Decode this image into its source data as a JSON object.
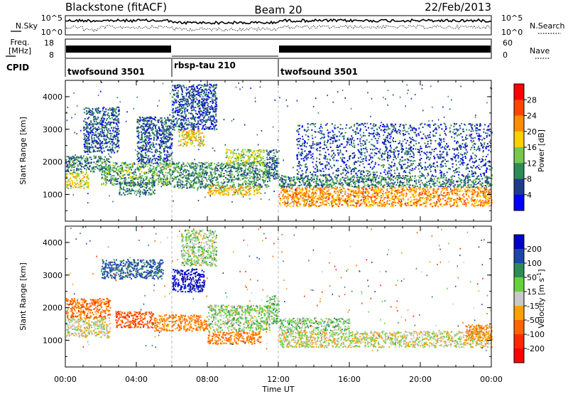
{
  "header": {
    "station": "Blackstone (fitACF)",
    "beam": "Beam 20",
    "date": "22/Feb/2013"
  },
  "strip_labels": {
    "nsky": "N.Sky",
    "nsearch": "N.Search",
    "freq_line1": "Freq.",
    "freq_line2": "[MHz]",
    "nave": "Nave",
    "cpid": "CPID",
    "noise_ticks": [
      "10^5",
      "10^0"
    ],
    "freq_ticks": [
      "18",
      "8"
    ],
    "nave_ticks": [
      "60",
      "0"
    ]
  },
  "cpid_segments": [
    {
      "label": "twofsound 3501",
      "start_hr": 0,
      "end_hr": 6.0
    },
    {
      "label": "rbsp-tau 210",
      "start_hr": 6.0,
      "end_hr": 12.0
    },
    {
      "label": "twofsound 3501",
      "start_hr": 12.0,
      "end_hr": 24.0
    }
  ],
  "axes": {
    "ylabel": "Slant Range [km]",
    "xlabel": "Time UT",
    "x_ticks": [
      "00:00",
      "04:00",
      "08:00",
      "12:00",
      "16:00",
      "20:00",
      "00:00"
    ],
    "y_ticks": [
      "1000",
      "2000",
      "3000",
      "4000"
    ]
  },
  "colorbars": {
    "power": {
      "label": "Power [dB]",
      "ticks": [
        "28",
        "24",
        "20",
        "16",
        "12",
        "8",
        "4"
      ],
      "colors": [
        "#ff0000",
        "#ff4500",
        "#ff8c00",
        "#ffd000",
        "#78c850",
        "#2e8b57",
        "#1e3c8c",
        "#0000ff"
      ]
    },
    "velocity": {
      "label": "Velocity [m s",
      "label_sup": "-1",
      "label_end": "]",
      "ticks": [
        "200",
        "100",
        "50",
        "15",
        "-15",
        "-50",
        "-100",
        "-200"
      ],
      "colors": [
        "#0000c8",
        "#1e46aa",
        "#2e8b57",
        "#64d23c",
        "#c8c8c8",
        "#ffa000",
        "#ff6400",
        "#ff2800",
        "#ff0000"
      ]
    }
  },
  "chart_data": [
    {
      "type": "heatmap",
      "title": "Power",
      "xlabel": "Time UT",
      "ylabel": "Slant Range [km]",
      "xlim_hours": [
        0,
        24
      ],
      "ylim_km": [
        180,
        4500
      ],
      "colorbar": "Power [dB]",
      "clim": [
        0,
        30
      ],
      "regions": [
        {
          "t0": 0.0,
          "t1": 1.3,
          "r0": 1200,
          "r1": 1700,
          "value": 17
        },
        {
          "t0": 0.0,
          "t1": 2.5,
          "r0": 1700,
          "r1": 2200,
          "value": 9
        },
        {
          "t0": 1.0,
          "t1": 3.0,
          "r0": 2300,
          "r1": 3700,
          "value": 7
        },
        {
          "t0": 2.0,
          "t1": 6.0,
          "r0": 1300,
          "r1": 2000,
          "value": 12
        },
        {
          "t0": 3.0,
          "t1": 5.0,
          "r0": 1000,
          "r1": 1400,
          "value": 9
        },
        {
          "t0": 4.0,
          "t1": 6.0,
          "r0": 2000,
          "r1": 3400,
          "value": 7
        },
        {
          "t0": 6.3,
          "t1": 7.8,
          "r0": 2500,
          "r1": 3000,
          "value": 18
        },
        {
          "t0": 6.0,
          "t1": 8.5,
          "r0": 3000,
          "r1": 4400,
          "value": 6
        },
        {
          "t0": 6.0,
          "t1": 11.5,
          "r0": 1200,
          "r1": 2000,
          "value": 10
        },
        {
          "t0": 8.0,
          "t1": 11.0,
          "r0": 1000,
          "r1": 1300,
          "value": 19
        },
        {
          "t0": 9.0,
          "t1": 11.2,
          "r0": 1900,
          "r1": 2400,
          "value": 15
        },
        {
          "t0": 11.3,
          "t1": 12.0,
          "r0": 1500,
          "r1": 2400,
          "value": 8
        },
        {
          "t0": 12.0,
          "t1": 24.0,
          "r0": 650,
          "r1": 1250,
          "value": 22
        },
        {
          "t0": 12.0,
          "t1": 24.0,
          "r0": 1250,
          "r1": 1600,
          "value": 9
        },
        {
          "t0": 13.0,
          "t1": 24.0,
          "r0": 1600,
          "r1": 3200,
          "value": 6
        }
      ]
    },
    {
      "type": "heatmap",
      "title": "Velocity",
      "xlabel": "Time UT",
      "ylabel": "Slant Range [km]",
      "xlim_hours": [
        0,
        24
      ],
      "ylim_km": [
        180,
        4500
      ],
      "colorbar": "Velocity [m s-1]",
      "clim": [
        -200,
        200
      ],
      "regions": [
        {
          "t0": 0.0,
          "t1": 2.5,
          "r0": 1100,
          "r1": 1700,
          "value": 0
        },
        {
          "t0": 0.0,
          "t1": 2.5,
          "r0": 1700,
          "r1": 2300,
          "value": -70
        },
        {
          "t0": 2.8,
          "t1": 5.0,
          "r0": 1400,
          "r1": 1900,
          "value": -90
        },
        {
          "t0": 2.0,
          "t1": 5.5,
          "r0": 2900,
          "r1": 3500,
          "value": 120
        },
        {
          "t0": 6.0,
          "t1": 7.8,
          "r0": 2500,
          "r1": 3200,
          "value": 220
        },
        {
          "t0": 6.5,
          "t1": 8.5,
          "r0": 3300,
          "r1": 4400,
          "value": 20
        },
        {
          "t0": 5.0,
          "t1": 8.0,
          "r0": 1300,
          "r1": 1800,
          "value": -50
        },
        {
          "t0": 8.0,
          "t1": 11.0,
          "r0": 900,
          "r1": 1300,
          "value": -60
        },
        {
          "t0": 8.0,
          "t1": 11.5,
          "r0": 1300,
          "r1": 2100,
          "value": 20
        },
        {
          "t0": 11.3,
          "t1": 12.0,
          "r0": 1500,
          "r1": 2400,
          "value": 30
        },
        {
          "t0": 12.0,
          "t1": 24.0,
          "r0": 800,
          "r1": 1300,
          "value": 0
        },
        {
          "t0": 12.0,
          "t1": 16.0,
          "r0": 1300,
          "r1": 1700,
          "value": 30
        },
        {
          "t0": 22.5,
          "t1": 24.0,
          "r0": 1000,
          "r1": 1500,
          "value": -50
        }
      ]
    }
  ]
}
